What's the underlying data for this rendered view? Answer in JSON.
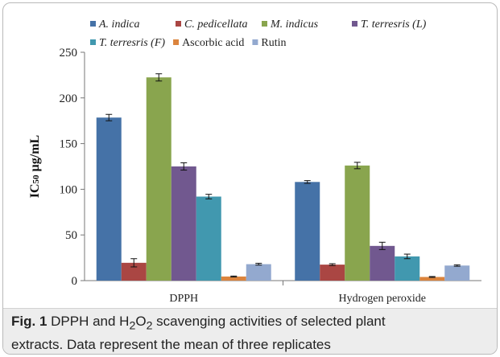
{
  "chart_data": {
    "type": "bar",
    "categories": [
      "DPPH",
      "Hydrogen peroxide"
    ],
    "series": [
      {
        "name": "A. indica",
        "color": "#4572a7",
        "values": [
          178.5,
          108.0
        ],
        "errors": [
          3.5,
          1.5
        ]
      },
      {
        "name": "C. pedicellata",
        "color": "#aa4643",
        "values": [
          19.5,
          17.5
        ],
        "errors": [
          4.5,
          1.0
        ]
      },
      {
        "name": "M. indicus",
        "color": "#89a54e",
        "values": [
          222.5,
          126.0
        ],
        "errors": [
          4.0,
          3.5
        ]
      },
      {
        "name": "T. terresris (L)",
        "color": "#71588f",
        "values": [
          125.0,
          38.0
        ],
        "errors": [
          4.0,
          4.0
        ]
      },
      {
        "name": "T. terresris (F)",
        "color": "#4198af",
        "values": [
          92.0,
          26.5
        ],
        "errors": [
          2.5,
          2.5
        ]
      },
      {
        "name": "Ascorbic acid",
        "color": "#db843d",
        "values": [
          4.5,
          4.0
        ],
        "errors": [
          0.5,
          0.5
        ]
      },
      {
        "name": "Rutin",
        "color": "#93a9cf",
        "values": [
          18.0,
          16.5
        ],
        "errors": [
          1.0,
          0.8
        ]
      }
    ],
    "ylabel_main": "IC",
    "ylabel_sub": "50",
    "ylabel_unit": " µg/mL",
    "ylim": [
      0,
      250
    ],
    "yticks": [
      0,
      50,
      100,
      150,
      200,
      250
    ],
    "grid": false,
    "legend_position": "top"
  },
  "caption": {
    "label": "Fig. 1",
    "line1_a": " DPPH and H",
    "sub_2a": "2",
    "line1_b": "O",
    "sub_2b": "2",
    "line1_c": " scavenging activities of selected plant",
    "line2": "extracts. Data represent the mean of three replicates"
  }
}
